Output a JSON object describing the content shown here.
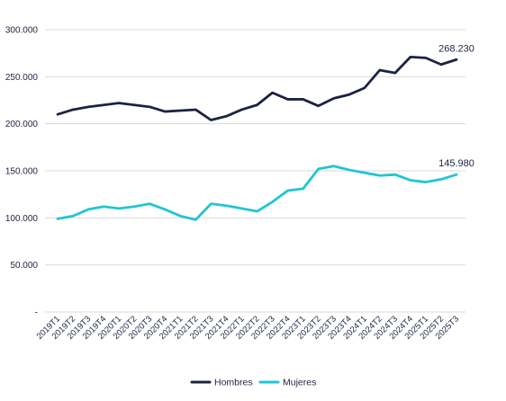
{
  "chart_data": {
    "type": "line",
    "categories": [
      "2019T1",
      "2019T2",
      "2019T3",
      "2019T4",
      "2020T1",
      "2020T2",
      "2020T3",
      "2020T4",
      "2021T1",
      "2021T2",
      "2021T3",
      "2021T4",
      "2022T1",
      "2022T2",
      "2022T3",
      "2022T4",
      "2023T1",
      "2023T2",
      "2023T3",
      "2023T4",
      "2024T1",
      "2024T2",
      "2024T3",
      "2024T4",
      "2025T1",
      "2025T2",
      "2025T3"
    ],
    "series": [
      {
        "name": "Hombres",
        "color": "#1c2340",
        "values": [
          210000,
          215000,
          218000,
          220000,
          222000,
          220000,
          218000,
          213000,
          214000,
          215000,
          204000,
          208000,
          215000,
          220000,
          233000,
          226000,
          226000,
          219000,
          227000,
          231000,
          238000,
          257000,
          254000,
          271000,
          270000,
          263000,
          268230
        ],
        "end_label": "268.230"
      },
      {
        "name": "Mujeres",
        "color": "#1fc6d4",
        "values": [
          99000,
          102000,
          109000,
          112000,
          110000,
          112000,
          115000,
          109000,
          102000,
          98000,
          115000,
          113000,
          110000,
          107000,
          117000,
          129000,
          131000,
          152000,
          155000,
          151000,
          148000,
          145000,
          146000,
          140000,
          138000,
          141000,
          145980
        ],
        "end_label": "145.980"
      }
    ],
    "yticks": [
      "-",
      "50.000",
      "100.000",
      "150.000",
      "200.000",
      "250.000",
      "300.000"
    ],
    "ylim": [
      0,
      300000
    ],
    "grid": true,
    "legend_position": "bottom-center"
  }
}
